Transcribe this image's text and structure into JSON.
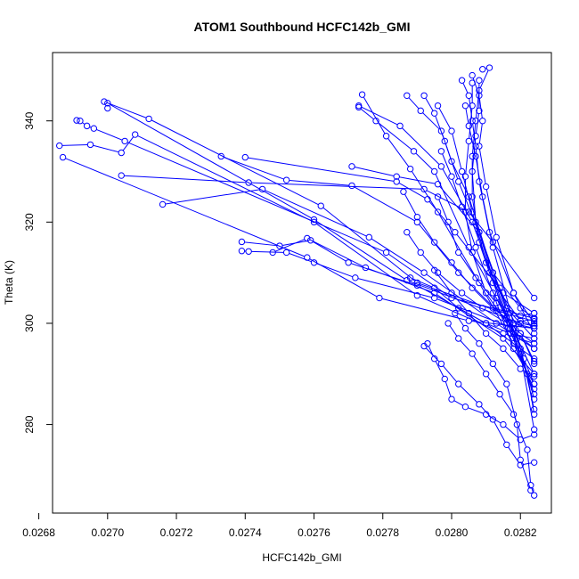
{
  "chart_data": {
    "type": "line",
    "title": "ATOM1 Southbound HCFC142b_GMI",
    "xlabel": "HCFC142b_GMI",
    "ylabel": "Theta (K)",
    "xlim": [
      0.02684,
      0.02829
    ],
    "ylim": [
      262.5,
      353.5
    ],
    "grid": false,
    "legend": "none",
    "color": "#0000ff",
    "marker": "open-circle",
    "xticks": [
      {
        "value": 0.0268,
        "label": "0.0268"
      },
      {
        "value": 0.027,
        "label": "0.0270"
      },
      {
        "value": 0.0272,
        "label": "0.0272"
      },
      {
        "value": 0.0274,
        "label": "0.0274"
      },
      {
        "value": 0.0276,
        "label": "0.0276"
      },
      {
        "value": 0.0278,
        "label": "0.0278"
      },
      {
        "value": 0.028,
        "label": "0.0280"
      },
      {
        "value": 0.0282,
        "label": "0.0282"
      }
    ],
    "yticks": [
      {
        "value": 280,
        "label": "280"
      },
      {
        "value": 300,
        "label": "300"
      },
      {
        "value": 320,
        "label": "320"
      },
      {
        "value": 340,
        "label": "340"
      }
    ],
    "series": [
      {
        "values": [
          [
            0.02699,
            343.8
          ],
          [
            0.02712,
            340.4
          ],
          [
            0.02762,
            323.2
          ],
          [
            0.0279,
            308.0
          ],
          [
            0.02813,
            302.5
          ],
          [
            0.02824,
            300.4
          ]
        ]
      },
      {
        "values": [
          [
            0.02691,
            340.1
          ],
          [
            0.02692,
            340.0
          ],
          [
            0.02694,
            339.0
          ],
          [
            0.02696,
            338.5
          ],
          [
            0.02705,
            336.0
          ],
          [
            0.02781,
            314.0
          ],
          [
            0.028,
            305.0
          ],
          [
            0.02824,
            301.0
          ]
        ]
      },
      {
        "values": [
          [
            0.02686,
            335.1
          ],
          [
            0.02695,
            335.3
          ],
          [
            0.02704,
            333.7
          ],
          [
            0.02708,
            337.3
          ],
          [
            0.0276,
            320.0
          ],
          [
            0.0279,
            305.5
          ],
          [
            0.02815,
            298.0
          ],
          [
            0.02824,
            296.0
          ]
        ]
      },
      {
        "values": [
          [
            0.02687,
            332.8
          ],
          [
            0.02758,
            313.0
          ],
          [
            0.02779,
            305.0
          ],
          [
            0.02805,
            300.5
          ],
          [
            0.02824,
            299.0
          ]
        ]
      },
      {
        "values": [
          [
            0.02704,
            329.2
          ],
          [
            0.02741,
            327.8
          ],
          [
            0.02792,
            326.5
          ],
          [
            0.02805,
            322.0
          ],
          [
            0.02812,
            316.0
          ],
          [
            0.02824,
            305.0
          ]
        ]
      },
      {
        "values": [
          [
            0.0274,
            332.8
          ],
          [
            0.02784,
            328.0
          ],
          [
            0.02793,
            324.5
          ],
          [
            0.02801,
            318.0
          ],
          [
            0.02815,
            306.0
          ],
          [
            0.02824,
            302.0
          ]
        ]
      },
      {
        "values": [
          [
            0.02716,
            323.5
          ],
          [
            0.02745,
            326.5
          ],
          [
            0.02776,
            317.0
          ],
          [
            0.02792,
            310.0
          ],
          [
            0.02813,
            300.0
          ],
          [
            0.02824,
            295.0
          ]
        ]
      },
      {
        "values": [
          [
            0.02739,
            316.1
          ],
          [
            0.0275,
            315.3
          ],
          [
            0.02759,
            316.4
          ],
          [
            0.0277,
            312.0
          ],
          [
            0.0279,
            307.5
          ],
          [
            0.0281,
            300.0
          ],
          [
            0.02824,
            293.0
          ]
        ]
      },
      {
        "values": [
          [
            0.02739,
            314.3
          ],
          [
            0.02741,
            314.2
          ],
          [
            0.02752,
            314.0
          ],
          [
            0.0276,
            312.0
          ],
          [
            0.02772,
            309.0
          ],
          [
            0.02795,
            305.0
          ],
          [
            0.02818,
            299.0
          ],
          [
            0.02824,
            296.0
          ]
        ]
      },
      {
        "values": [
          [
            0.02748,
            314.0
          ],
          [
            0.02758,
            316.8
          ],
          [
            0.02775,
            311.0
          ],
          [
            0.02795,
            306.0
          ],
          [
            0.02815,
            297.0
          ],
          [
            0.02824,
            290.0
          ]
        ]
      },
      {
        "values": [
          [
            0.02733,
            333.0
          ],
          [
            0.02752,
            328.3
          ],
          [
            0.02771,
            327.2
          ],
          [
            0.0279,
            320.0
          ],
          [
            0.02802,
            310.0
          ],
          [
            0.0282,
            298.0
          ],
          [
            0.02824,
            292.0
          ]
        ]
      },
      {
        "values": [
          [
            0.027,
            342.5
          ],
          [
            0.027,
            343.5
          ],
          [
            0.0276,
            320.5
          ],
          [
            0.02787,
            308.5
          ],
          [
            0.0282,
            300.0
          ],
          [
            0.02824,
            299.5
          ]
        ]
      },
      {
        "values": [
          [
            0.02771,
            331.0
          ],
          [
            0.02784,
            329.0
          ],
          [
            0.02796,
            327.5
          ],
          [
            0.02808,
            318.0
          ],
          [
            0.02816,
            303.0
          ],
          [
            0.02824,
            297.0
          ]
        ]
      },
      {
        "values": [
          [
            0.02774,
            345.2
          ],
          [
            0.02781,
            337.0
          ],
          [
            0.02788,
            330.5
          ],
          [
            0.02796,
            322.0
          ],
          [
            0.02808,
            308.0
          ],
          [
            0.02818,
            296.0
          ],
          [
            0.02824,
            287.0
          ]
        ]
      },
      {
        "values": [
          [
            0.02773,
            342.7
          ],
          [
            0.02778,
            340.0
          ],
          [
            0.02789,
            334.0
          ],
          [
            0.02795,
            330.0
          ],
          [
            0.02805,
            315.0
          ],
          [
            0.02817,
            300.0
          ],
          [
            0.02824,
            290.0
          ]
        ]
      },
      {
        "values": [
          [
            0.02773,
            343.0
          ],
          [
            0.02785,
            339.0
          ],
          [
            0.02797,
            331.0
          ],
          [
            0.02806,
            320.0
          ],
          [
            0.02818,
            298.0
          ],
          [
            0.02824,
            286.0
          ]
        ]
      },
      {
        "values": [
          [
            0.02787,
            345.0
          ],
          [
            0.02791,
            342.0
          ],
          [
            0.02797,
            338.0
          ],
          [
            0.028,
            332.0
          ],
          [
            0.02805,
            325.0
          ],
          [
            0.02812,
            310.0
          ],
          [
            0.0282,
            295.0
          ],
          [
            0.02824,
            283.0
          ]
        ]
      },
      {
        "values": [
          [
            0.02792,
            345.0
          ],
          [
            0.02795,
            341.5
          ],
          [
            0.02798,
            336.0
          ],
          [
            0.02802,
            328.0
          ],
          [
            0.02808,
            318.0
          ],
          [
            0.02815,
            302.0
          ],
          [
            0.02822,
            290.0
          ],
          [
            0.02824,
            282.0
          ]
        ]
      },
      {
        "values": [
          [
            0.02796,
            343.0
          ],
          [
            0.028,
            338.0
          ],
          [
            0.02803,
            330.0
          ],
          [
            0.02806,
            322.0
          ],
          [
            0.02811,
            310.0
          ],
          [
            0.0282,
            294.0
          ],
          [
            0.02824,
            279.0
          ]
        ]
      },
      {
        "values": [
          [
            0.02804,
            343.0
          ],
          [
            0.02805,
            339.0
          ],
          [
            0.02807,
            333.0
          ],
          [
            0.02809,
            325.0
          ],
          [
            0.02812,
            315.0
          ],
          [
            0.02818,
            300.0
          ],
          [
            0.02824,
            285.0
          ]
        ]
      },
      {
        "values": [
          [
            0.02806,
            349.0
          ],
          [
            0.02808,
            345.0
          ],
          [
            0.02809,
            340.0
          ],
          [
            0.02808,
            335.0
          ],
          [
            0.0281,
            327.0
          ],
          [
            0.02813,
            317.0
          ],
          [
            0.02818,
            306.0
          ],
          [
            0.02824,
            298.0
          ]
        ]
      },
      {
        "values": [
          [
            0.02809,
            350.2
          ],
          [
            0.02811,
            350.5
          ],
          [
            0.02808,
            346.0
          ],
          [
            0.02807,
            340.0
          ],
          [
            0.02806,
            333.0
          ],
          [
            0.02806,
            325.0
          ],
          [
            0.02808,
            316.0
          ],
          [
            0.02812,
            308.0
          ],
          [
            0.0282,
            300.5
          ],
          [
            0.02824,
            299.5
          ]
        ]
      },
      {
        "values": [
          [
            0.02806,
            347.5
          ],
          [
            0.02806,
            343.0
          ],
          [
            0.02805,
            336.0
          ],
          [
            0.02804,
            329.0
          ],
          [
            0.02804,
            322.0
          ],
          [
            0.02806,
            314.0
          ],
          [
            0.0281,
            306.0
          ],
          [
            0.02817,
            299.0
          ],
          [
            0.02824,
            295.0
          ]
        ]
      },
      {
        "values": [
          [
            0.02808,
            348.0
          ],
          [
            0.02808,
            342.0
          ],
          [
            0.02807,
            337.0
          ],
          [
            0.02806,
            330.0
          ],
          [
            0.02807,
            320.0
          ],
          [
            0.02812,
            310.0
          ],
          [
            0.0282,
            303.0
          ],
          [
            0.02824,
            301.0
          ]
        ]
      },
      {
        "values": [
          [
            0.02803,
            348.0
          ],
          [
            0.02805,
            345.0
          ],
          [
            0.02806,
            340.0
          ],
          [
            0.02807,
            335.0
          ],
          [
            0.02808,
            328.0
          ],
          [
            0.02811,
            318.0
          ],
          [
            0.02818,
            306.0
          ],
          [
            0.02824,
            300.0
          ]
        ]
      },
      {
        "values": [
          [
            0.02793,
            296.0
          ],
          [
            0.02795,
            293.0
          ],
          [
            0.02798,
            289.0
          ],
          [
            0.028,
            285.0
          ],
          [
            0.02804,
            283.5
          ],
          [
            0.0281,
            282.0
          ],
          [
            0.02815,
            280.0
          ],
          [
            0.0282,
            277.0
          ],
          [
            0.02824,
            278.0
          ]
        ]
      },
      {
        "values": [
          [
            0.02792,
            295.5
          ],
          [
            0.02797,
            292.0
          ],
          [
            0.02802,
            288.0
          ],
          [
            0.02808,
            284.0
          ],
          [
            0.02812,
            281.0
          ],
          [
            0.02816,
            276.0
          ],
          [
            0.0282,
            272.0
          ],
          [
            0.02824,
            272.5
          ]
        ]
      },
      {
        "values": [
          [
            0.02799,
            300.0
          ],
          [
            0.02802,
            297.0
          ],
          [
            0.02806,
            294.0
          ],
          [
            0.0281,
            290.0
          ],
          [
            0.02814,
            286.0
          ],
          [
            0.02818,
            282.0
          ],
          [
            0.02822,
            275.0
          ],
          [
            0.02823,
            268.0
          ],
          [
            0.02824,
            266.0
          ]
        ]
      },
      {
        "values": [
          [
            0.02801,
            302.0
          ],
          [
            0.02804,
            299.0
          ],
          [
            0.02808,
            296.0
          ],
          [
            0.02812,
            292.0
          ],
          [
            0.02816,
            288.0
          ],
          [
            0.02819,
            280.0
          ],
          [
            0.0282,
            273.0
          ],
          [
            0.02823,
            267.0
          ]
        ]
      },
      {
        "values": [
          [
            0.02795,
            310.5
          ],
          [
            0.028,
            306.0
          ],
          [
            0.02805,
            302.0
          ],
          [
            0.0281,
            298.0
          ],
          [
            0.02815,
            295.0
          ],
          [
            0.0282,
            291.0
          ],
          [
            0.02824,
            289.5
          ]
        ]
      },
      {
        "values": [
          [
            0.02788,
            309.0
          ],
          [
            0.02795,
            307.0
          ],
          [
            0.02802,
            303.0
          ],
          [
            0.0281,
            300.0
          ],
          [
            0.02817,
            298.0
          ],
          [
            0.02824,
            297.0
          ]
        ]
      },
      {
        "values": [
          [
            0.02787,
            318.0
          ],
          [
            0.02791,
            314.0
          ],
          [
            0.02796,
            310.0
          ],
          [
            0.02803,
            306.0
          ],
          [
            0.02809,
            303.0
          ],
          [
            0.02816,
            300.0
          ],
          [
            0.02824,
            300.8
          ]
        ]
      },
      {
        "values": [
          [
            0.02786,
            326.0
          ],
          [
            0.0279,
            321.0
          ],
          [
            0.02795,
            316.0
          ],
          [
            0.028,
            312.0
          ],
          [
            0.02806,
            307.0
          ],
          [
            0.02812,
            303.0
          ],
          [
            0.02818,
            300.0
          ],
          [
            0.02824,
            299.0
          ]
        ]
      },
      {
        "values": [
          [
            0.02796,
            325.0
          ],
          [
            0.02799,
            320.0
          ],
          [
            0.02802,
            314.0
          ],
          [
            0.02807,
            309.0
          ],
          [
            0.02813,
            304.0
          ],
          [
            0.0282,
            301.5
          ],
          [
            0.02824,
            302.0
          ]
        ]
      },
      {
        "values": [
          [
            0.02797,
            334.0
          ],
          [
            0.028,
            329.0
          ],
          [
            0.02803,
            323.0
          ],
          [
            0.02807,
            315.0
          ],
          [
            0.02812,
            306.0
          ],
          [
            0.02818,
            295.0
          ],
          [
            0.02824,
            288.0
          ]
        ]
      },
      {
        "values": [
          [
            0.0281,
            312.0
          ],
          [
            0.02814,
            307.0
          ],
          [
            0.02817,
            302.0
          ],
          [
            0.0282,
            298.0
          ],
          [
            0.02824,
            292.5
          ]
        ]
      },
      {
        "values": [
          [
            0.02813,
            305.0
          ],
          [
            0.02816,
            301.0
          ],
          [
            0.02819,
            297.0
          ],
          [
            0.02821,
            293.0
          ],
          [
            0.02824,
            288.0
          ]
        ]
      }
    ]
  }
}
